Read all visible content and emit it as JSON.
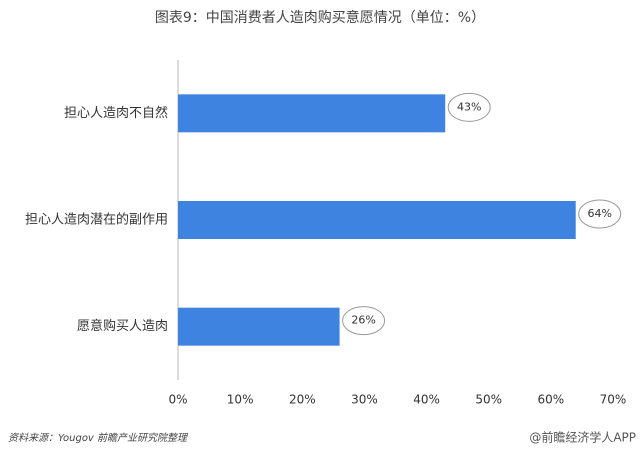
{
  "chart_data": {
    "type": "bar",
    "orientation": "horizontal",
    "title": "图表9：中国消费者人造肉购买意愿情况（单位：%）",
    "categories": [
      "担心人造肉不自然",
      "担心人造肉潜在的副作用",
      "愿意购买人造肉"
    ],
    "values": [
      43,
      64,
      26
    ],
    "value_labels": [
      "43%",
      "64%",
      "26%"
    ],
    "color": "#3f83e0",
    "xlim": [
      0,
      70
    ],
    "xticks": [
      {
        "value": 0,
        "label": "0%"
      },
      {
        "value": 10,
        "label": "10%"
      },
      {
        "value": 20,
        "label": "20%"
      },
      {
        "value": 30,
        "label": "30%"
      },
      {
        "value": 40,
        "label": "40%"
      },
      {
        "value": 50,
        "label": "50%"
      },
      {
        "value": 60,
        "label": "60%"
      },
      {
        "value": 70,
        "label": "70%"
      }
    ],
    "grid": false,
    "source": "资料来源：Yougov 前瞻产业研究院整理",
    "watermark": "@前瞻经济学人APP"
  }
}
